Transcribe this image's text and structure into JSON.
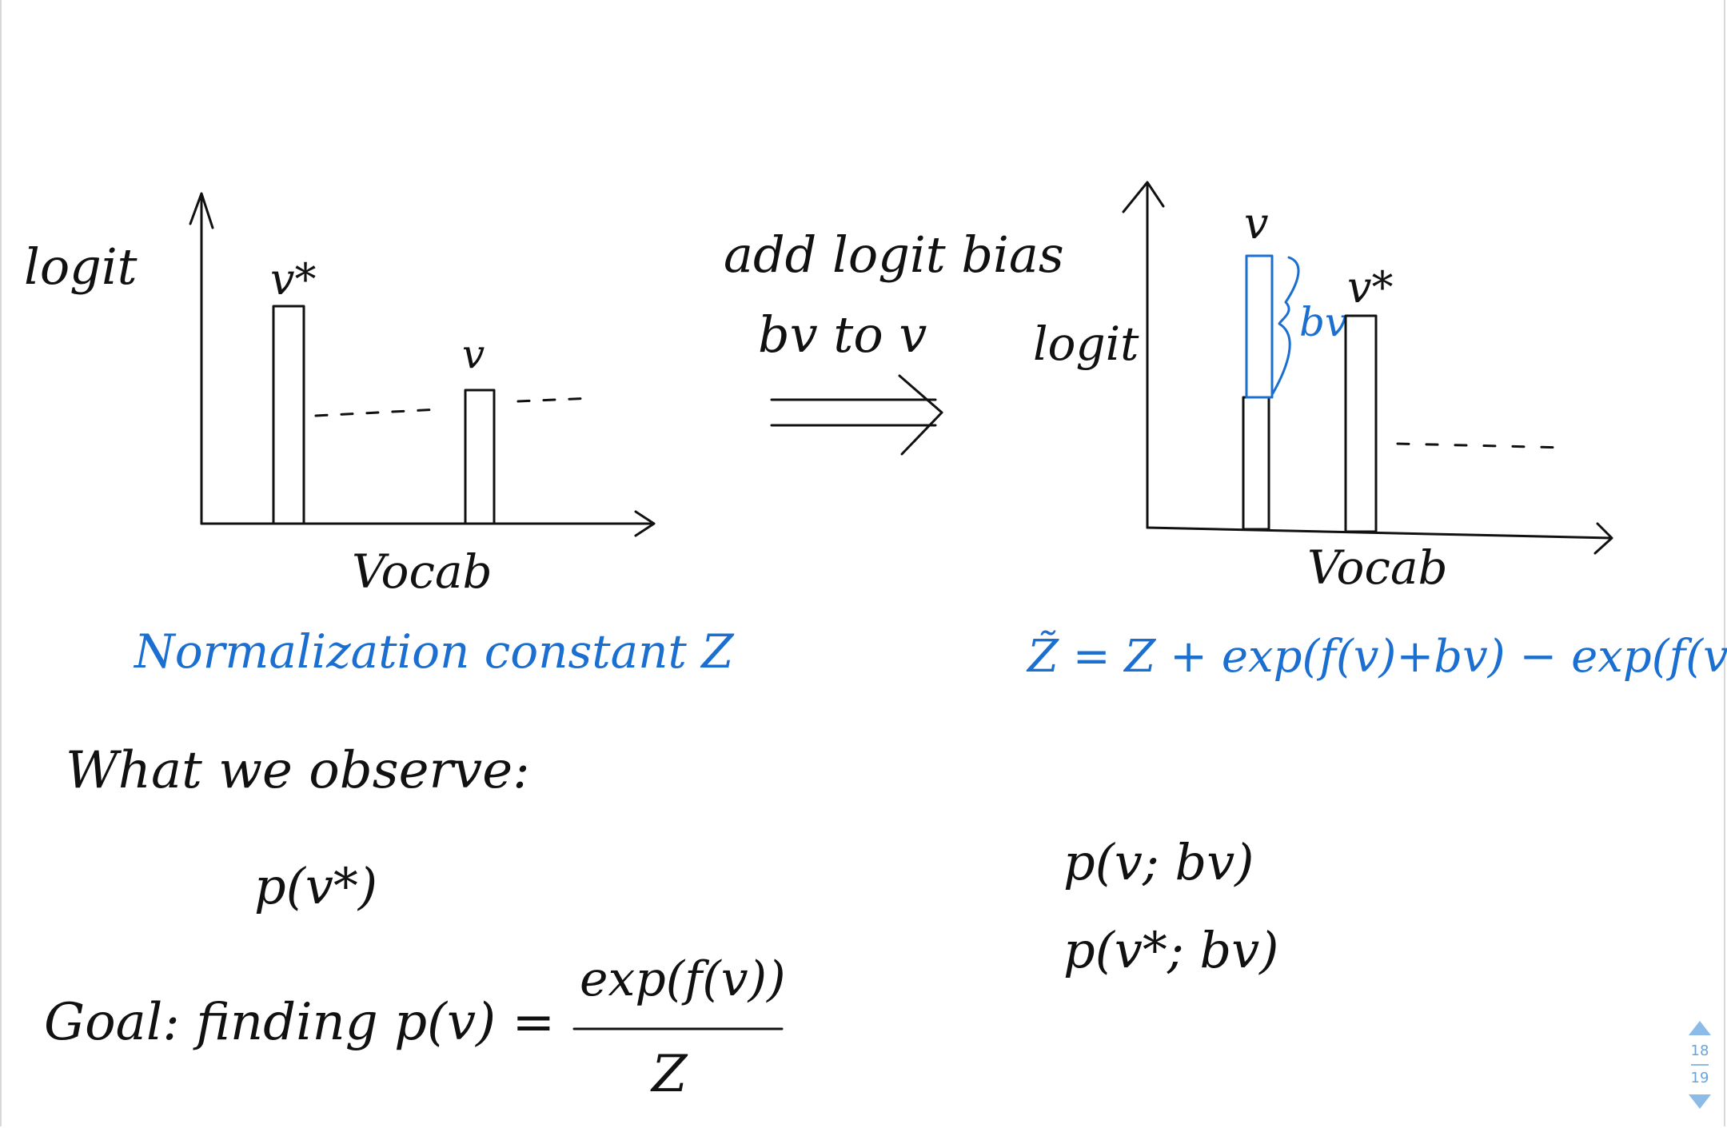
{
  "left_panel": {
    "ylabel": "logit",
    "xlabel": "Vocab",
    "bar1_label": "v*",
    "bar2_label": "v",
    "caption": "Normalization constant Z"
  },
  "middle": {
    "line1": "add logit bias",
    "line2": "bv to v"
  },
  "right_panel": {
    "ylabel": "logit",
    "xlabel": "Vocab",
    "bar1_label": "v",
    "bar2_label": "v*",
    "bias_label": "bv",
    "formula": "Z̃ = Z + exp(f(v)+bv) − exp(f(v))"
  },
  "notes": {
    "observe_heading": "What we observe:",
    "observe_value": "p(v*)",
    "goal_prefix": "Goal: finding p(v) =",
    "goal_numerator": "exp(f(v))",
    "goal_denominator": "Z",
    "right_item1": "p(v; bv)",
    "right_item2": "p(v*; bv)"
  },
  "pager": {
    "current": "18",
    "total": "19"
  },
  "colors": {
    "ink": "#111111",
    "accent_blue": "#1a6fd1",
    "pager_blue": "#8bbbe6"
  }
}
